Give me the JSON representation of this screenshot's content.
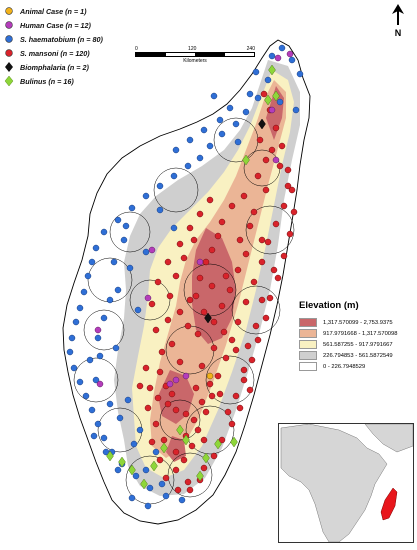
{
  "legend": {
    "items": [
      {
        "label": "Animal Case (n = 1)",
        "symbol": "circle",
        "color": "#f2b21b"
      },
      {
        "label": "Human Case (n = 12)",
        "symbol": "circle",
        "color": "#b43dbb"
      },
      {
        "label": "S. haematobium (n = 80)",
        "symbol": "circle",
        "color": "#2f6fd6"
      },
      {
        "label": "S. mansoni (n = 120)",
        "symbol": "circle",
        "color": "#d9232b"
      },
      {
        "label": "Biomphalaria (n = 2)",
        "symbol": "diamond",
        "color": "#111111"
      },
      {
        "label": "Bulinus (n = 16)",
        "symbol": "diamond",
        "color": "#8ed639"
      }
    ]
  },
  "north": {
    "label": "N"
  },
  "scale": {
    "ticks": [
      "0",
      "120",
      "240"
    ],
    "unit": "Kilometers"
  },
  "elevation": {
    "title": "Elevation (m)",
    "classes": [
      {
        "label": "1,317.570099 - 2,753.9375",
        "color": "#c9676a"
      },
      {
        "label": "917.9791668 - 1,317.570098",
        "color": "#ebb596"
      },
      {
        "label": "561.587255 - 917.9791667",
        "color": "#f9f1c2"
      },
      {
        "label": "226.794853 - 561.5872549",
        "color": "#cfcfcf"
      },
      {
        "label": "0 - 226.7948529",
        "color": "#ffffff"
      }
    ]
  },
  "colors": {
    "island_outline": "#000000",
    "inset_land": "#d6d6d6",
    "inset_highlight": "#e8161c"
  }
}
